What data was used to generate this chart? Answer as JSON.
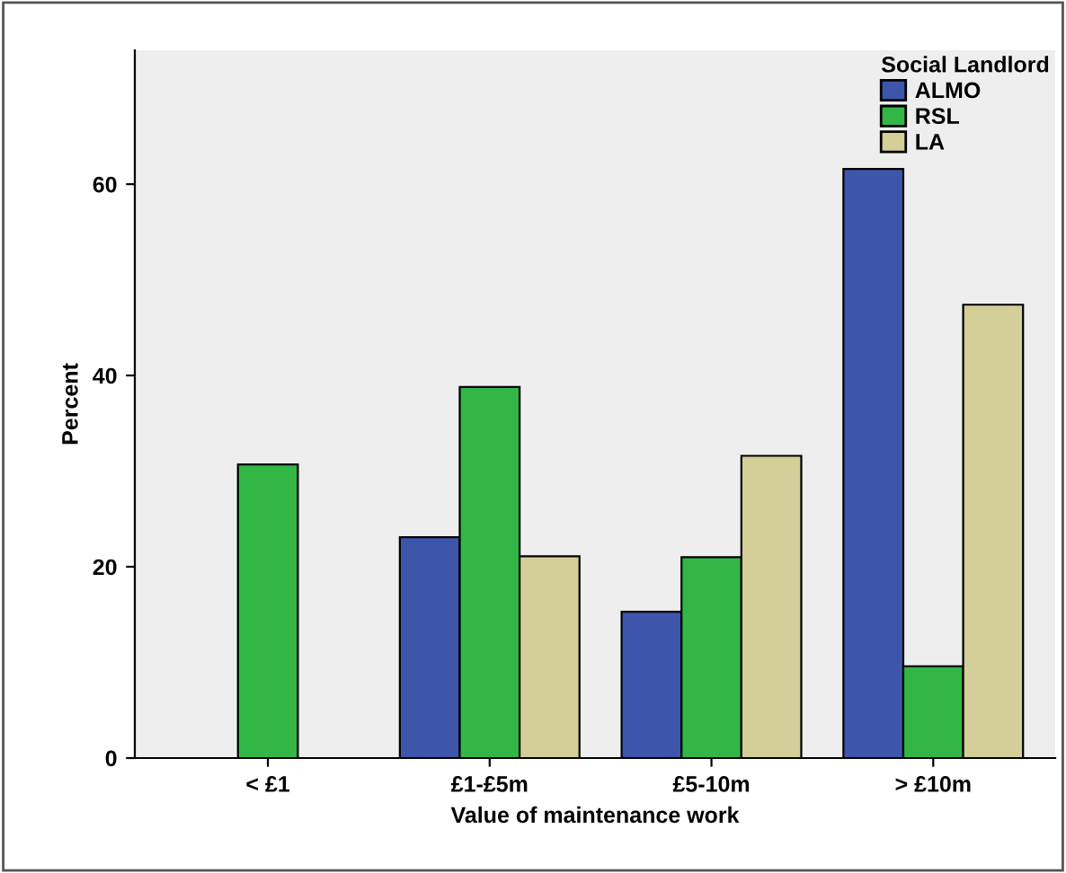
{
  "chart_data": {
    "type": "bar",
    "xlabel": "Value of maintenance work",
    "ylabel": "Percent",
    "legend_title": "Social Landlord",
    "categories": [
      "< £1",
      "£1-£5m",
      "£5-10m",
      "> £10m"
    ],
    "series": [
      {
        "name": "ALMO",
        "color": "#3d56ab",
        "values": [
          0,
          23.1,
          15.3,
          61.6
        ]
      },
      {
        "name": "RSL",
        "color": "#32b747",
        "values": [
          30.7,
          38.8,
          21.0,
          9.6
        ]
      },
      {
        "name": "LA",
        "color": "#d4cf98",
        "values": [
          0,
          21.1,
          31.6,
          47.4
        ]
      }
    ],
    "ylim": [
      0,
      74
    ],
    "yticks": [
      0,
      20,
      40,
      60
    ],
    "grid": false,
    "legend": "top right"
  }
}
